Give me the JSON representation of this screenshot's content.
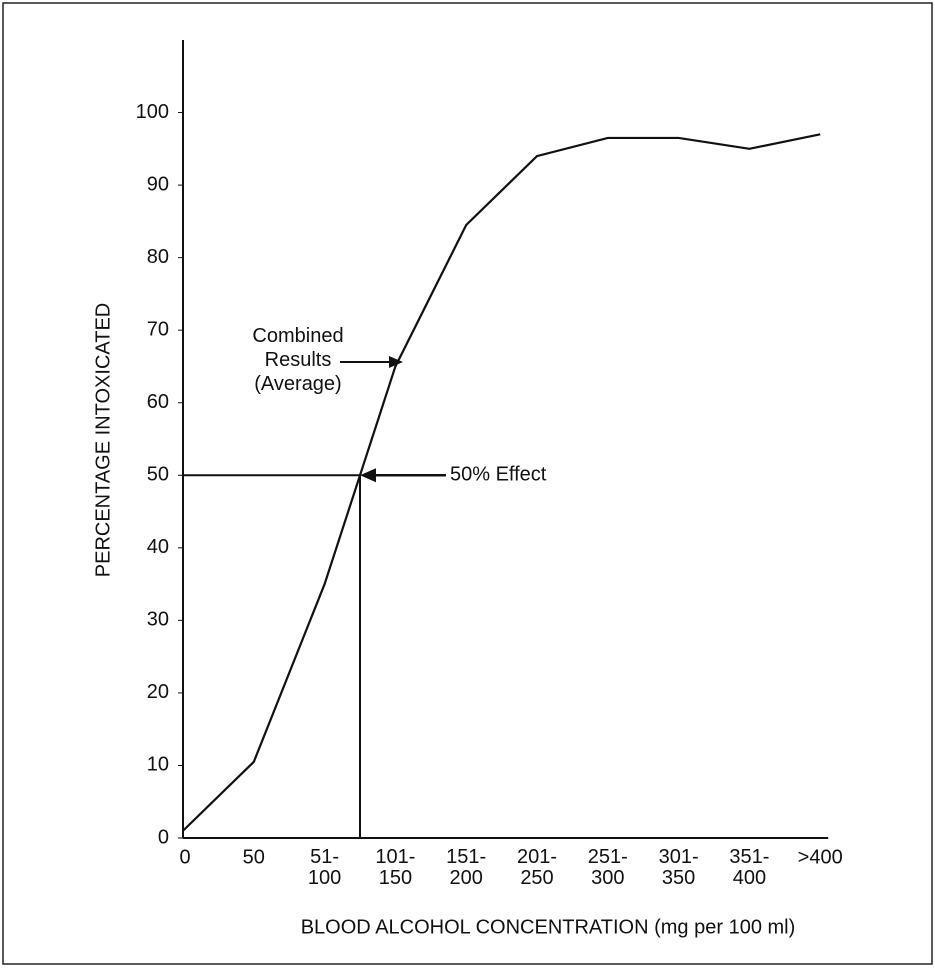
{
  "chart_data": {
    "type": "line",
    "xlabel": "BLOOD ALCOHOL CONCENTRATION (mg per 100 ml)",
    "ylabel": "PERCENTAGE INTOXICATED",
    "categories": [
      "0",
      "50",
      "51-\n100",
      "101-\n150",
      "151-\n200",
      "201-\n250",
      "251-\n300",
      "301-\n350",
      "351-\n400",
      ">400"
    ],
    "series": [
      {
        "name": "Combined Results (Average)",
        "color": "#111111",
        "values": [
          1,
          10.5,
          35,
          65,
          84.5,
          94,
          96.5,
          96.5,
          95,
          97
        ]
      }
    ],
    "ylim": [
      0,
      110
    ],
    "yticks": [
      0,
      10,
      20,
      30,
      40,
      50,
      60,
      70,
      80,
      90,
      100
    ],
    "reference_y": 50,
    "annotations": [
      {
        "text": "Combined\nResults\n(Average)"
      },
      {
        "text": "50% Effect"
      }
    ]
  }
}
